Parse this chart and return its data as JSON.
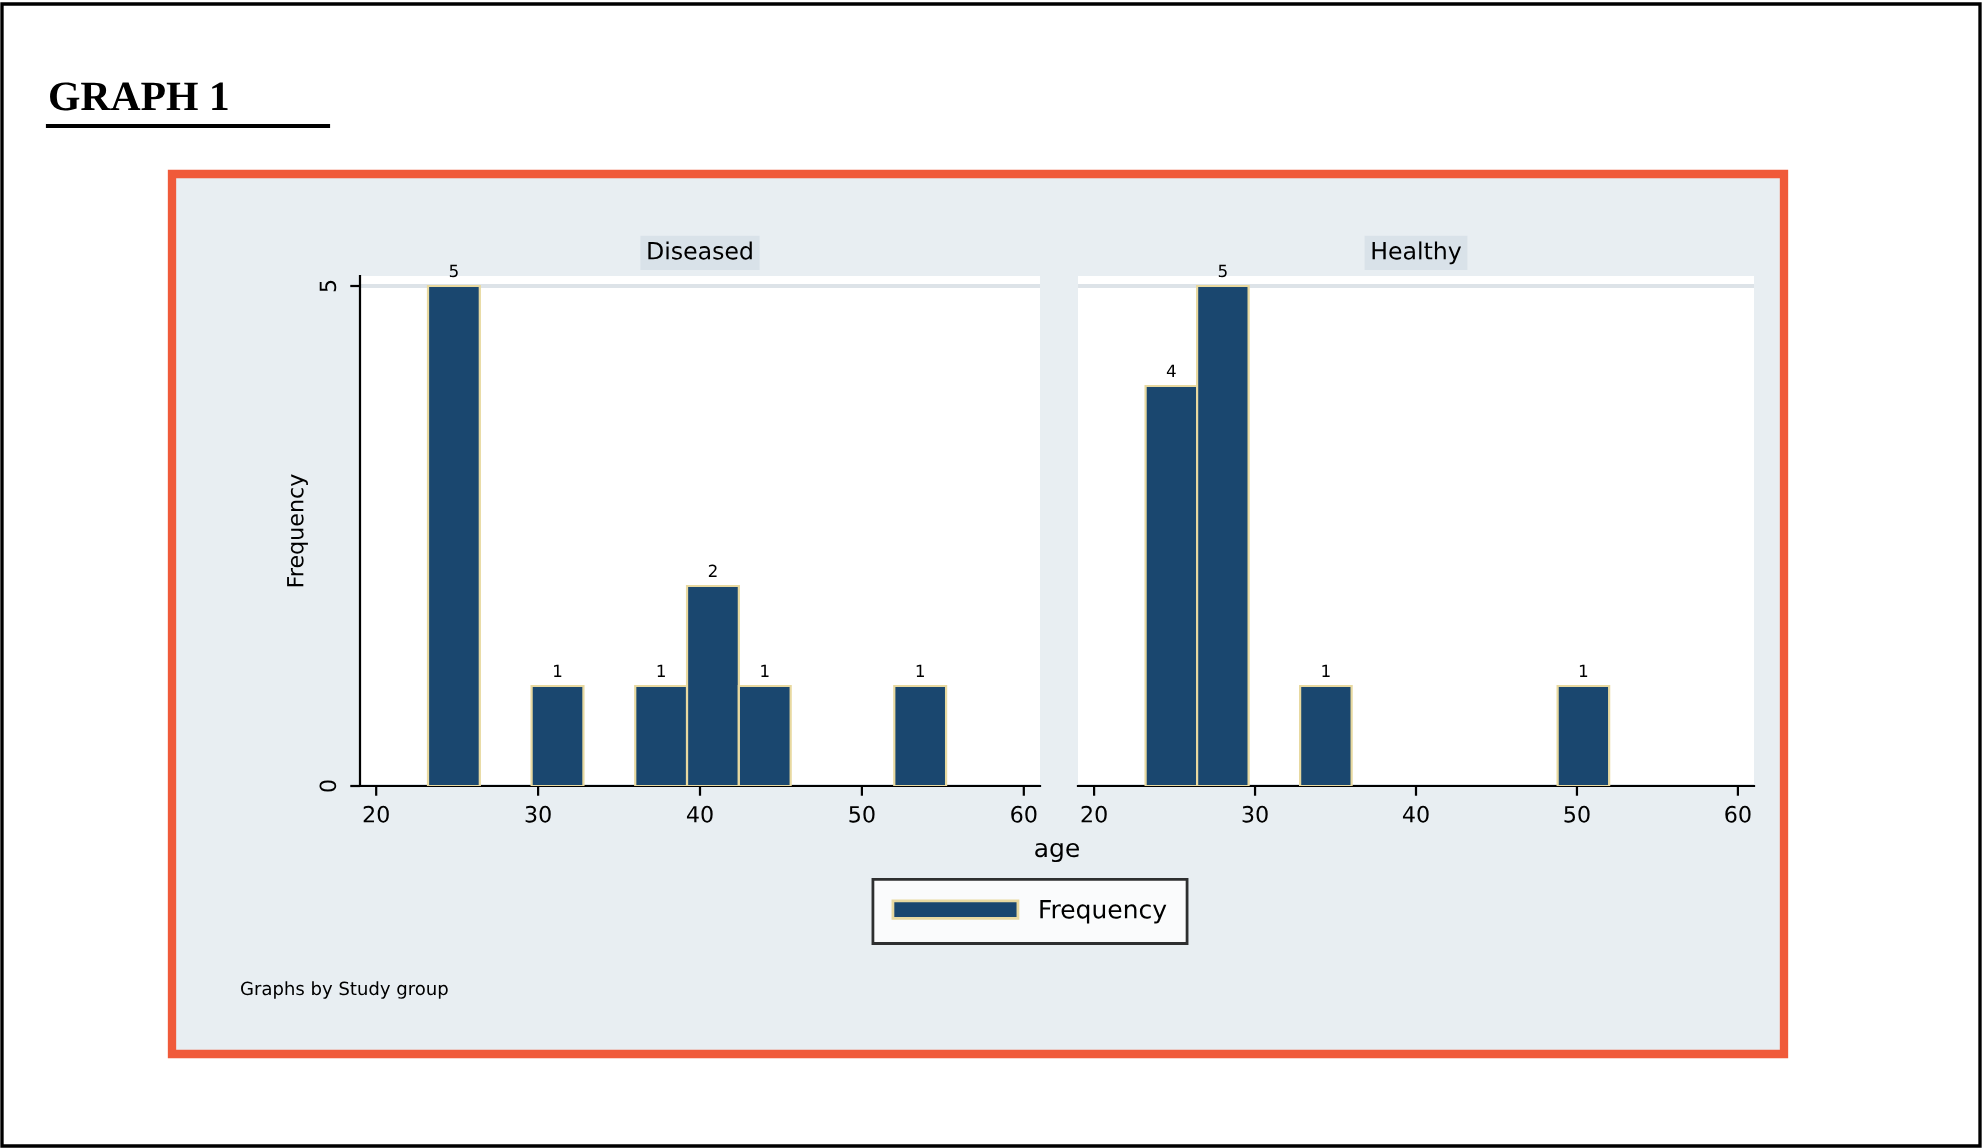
{
  "chart_data": [
    {
      "type": "histogram",
      "title": "Diseased",
      "xlabel": "age",
      "ylabel": "Frequency",
      "annotations": [
        "GRAPH 1",
        "Graphs by Study group"
      ],
      "bins": [
        23.2,
        26.4,
        29.6,
        32.8,
        36.0,
        39.2,
        42.4,
        45.6,
        48.8,
        52.0,
        55.2
      ],
      "series": [
        {
          "name": "Frequency",
          "color": "#1a476f",
          "values": [
            5,
            null,
            1,
            null,
            1,
            2,
            1,
            null,
            null,
            1
          ]
        }
      ],
      "xlim": [
        19,
        61
      ],
      "xticks": [
        20,
        30,
        40,
        50,
        60
      ],
      "ylim": [
        0,
        5.1
      ],
      "yticks": [
        0,
        5
      ],
      "grid": "y",
      "legend": "bottom",
      "data_labels": true
    },
    {
      "type": "histogram",
      "title": "Healthy",
      "bins": [
        23.2,
        26.4,
        29.6,
        32.8,
        36.0,
        39.2,
        42.4,
        45.6,
        48.8,
        52.0,
        55.2
      ],
      "series": [
        {
          "color": "#1a476f",
          "values": [
            4,
            5,
            null,
            1,
            null,
            null,
            null,
            null,
            1,
            null
          ]
        }
      ],
      "xlim": [
        19,
        61
      ],
      "xticks": [
        20,
        30,
        40,
        50,
        60
      ],
      "ylim": [
        0,
        5.1
      ],
      "yticks": [
        0,
        5
      ],
      "grid": "y",
      "tick_labels": "x",
      "data_labels": true
    }
  ]
}
